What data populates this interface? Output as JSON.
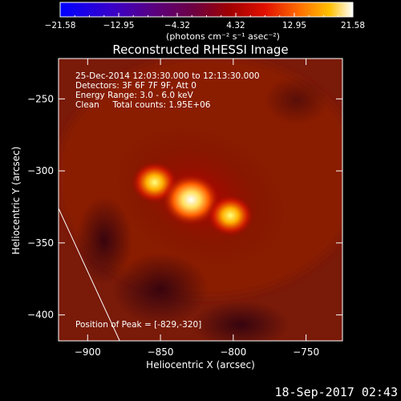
{
  "chart_data": {
    "type": "heatmap",
    "title": "Reconstructed RHESSI Image",
    "xlabel": "Heliocentric X (arcsec)",
    "ylabel": "Heliocentric Y (arcsec)",
    "xlim": [
      -920,
      -725
    ],
    "ylim": [
      -418,
      -222
    ],
    "x_ticks": [
      -900,
      -850,
      -800,
      -750
    ],
    "y_ticks": [
      -250,
      -300,
      -350,
      -400
    ],
    "x_tick_labels": [
      "−900",
      "−850",
      "−800",
      "−750"
    ],
    "y_tick_labels": [
      "−250",
      "−300",
      "−350",
      "−400"
    ],
    "colorbar": {
      "range": [
        -21.58,
        21.58
      ],
      "tick_labels": [
        "−21.58",
        "−12.95",
        "−4.32",
        "4.32",
        "12.95",
        "21.58"
      ],
      "unit": "(photons cm⁻² s⁻¹ asec⁻²)"
    },
    "sources": [
      {
        "x": -854,
        "y": -308,
        "peak": 17
      },
      {
        "x": -829,
        "y": -320,
        "peak": 21.58
      },
      {
        "x": -802,
        "y": -331,
        "peak": 16
      }
    ],
    "limb_line": [
      [
        -920,
        -326
      ],
      [
        -878,
        -418
      ]
    ],
    "annotations": {
      "time": "25-Dec-2014 12:03:30.000 to 12:13:30.000",
      "detectors": "Detectors: 3F 6F 7F 9F, Att 0",
      "energy": "Energy Range: 3.0 - 6.0 keV",
      "clean": "Clean     Total counts: 1.95E+06",
      "peak": "Position of Peak = [-829,-320]"
    },
    "grid": false
  },
  "footer": {
    "timestamp": "18-Sep-2017 02:43"
  },
  "colors": {
    "background": "#000000",
    "text": "#ffffff"
  }
}
